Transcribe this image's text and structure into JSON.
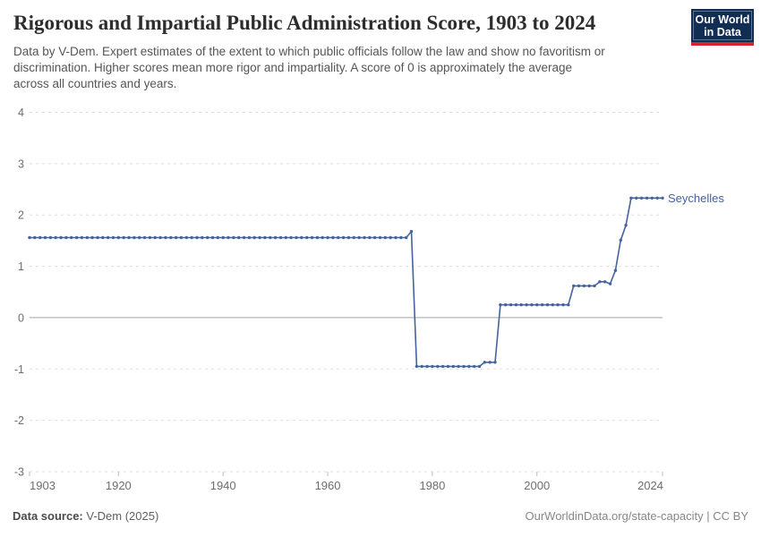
{
  "header": {
    "title": "Rigorous and Impartial Public Administration Score, 1903 to 2024",
    "subtitle": "Data by V-Dem. Expert estimates of the extent to which public officials follow the law and show no favoritism or\ndiscrimination. Higher scores mean more rigor and impartiality. A score of 0 is approximately the average\nacross all countries and years."
  },
  "logo": {
    "line1": "Our World",
    "line2": "in Data",
    "bg_color": "#122d54",
    "bar_color": "#d8222c"
  },
  "chart_data": {
    "type": "line",
    "title": "Rigorous and Impartial Public Administration Score, 1903 to 2024",
    "xlabel": "",
    "ylabel": "",
    "xlim": [
      1903,
      2024
    ],
    "ylim": [
      -3,
      4
    ],
    "x_ticks": [
      1903,
      1920,
      1940,
      1960,
      1980,
      2000,
      2024
    ],
    "y_ticks": [
      4,
      3,
      2,
      1,
      0,
      -1,
      -2,
      -3
    ],
    "grid": true,
    "legend_position": "end-of-line",
    "series": [
      {
        "name": "Seychelles",
        "color": "#45639e",
        "segments": [
          {
            "from": 1903,
            "to": 1975,
            "value": 1.56
          },
          {
            "from": 1976,
            "to": 1976,
            "value": 1.68
          },
          {
            "from": 1977,
            "to": 1989,
            "value": -0.95
          },
          {
            "from": 1990,
            "to": 1992,
            "value": -0.87
          },
          {
            "from": 1993,
            "to": 2006,
            "value": 0.25
          },
          {
            "from": 2007,
            "to": 2011,
            "value": 0.62
          },
          {
            "from": 2012,
            "to": 2013,
            "value": 0.7
          },
          {
            "from": 2014,
            "to": 2014,
            "value": 0.66
          },
          {
            "from": 2015,
            "to": 2015,
            "value": 0.92
          },
          {
            "from": 2016,
            "to": 2016,
            "value": 1.51
          },
          {
            "from": 2017,
            "to": 2017,
            "value": 1.8
          },
          {
            "from": 2018,
            "to": 2024,
            "value": 2.33
          }
        ]
      }
    ],
    "colors": {
      "gridline": "#dedede",
      "zero_line": "#a3a3a3",
      "tick_mark": "#bbbbbb",
      "axis_text": "#6e6e6e"
    }
  },
  "footer": {
    "source_label": "Data source:",
    "source_value": " V-Dem (2025)",
    "credit": "OurWorldinData.org/state-capacity | CC BY"
  }
}
